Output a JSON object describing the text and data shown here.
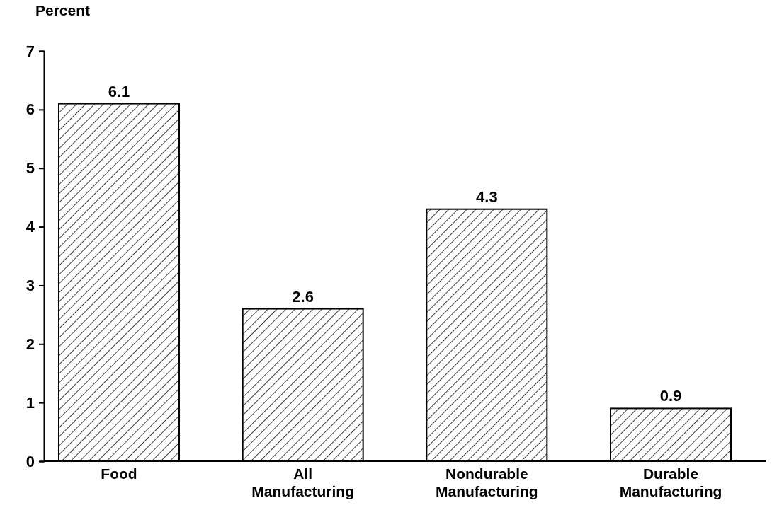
{
  "chart_data": {
    "type": "bar",
    "ylabel": "Percent",
    "categories": [
      "Food",
      "All Manufacturing",
      "Nondurable Manufacturing",
      "Durable Manufacturing"
    ],
    "values": [
      6.1,
      2.6,
      4.3,
      0.9
    ],
    "color": "#000000",
    "ylim": [
      0,
      7
    ],
    "yticks": [
      0,
      1,
      2,
      3,
      4,
      5,
      6,
      7
    ],
    "data_labels": true
  }
}
